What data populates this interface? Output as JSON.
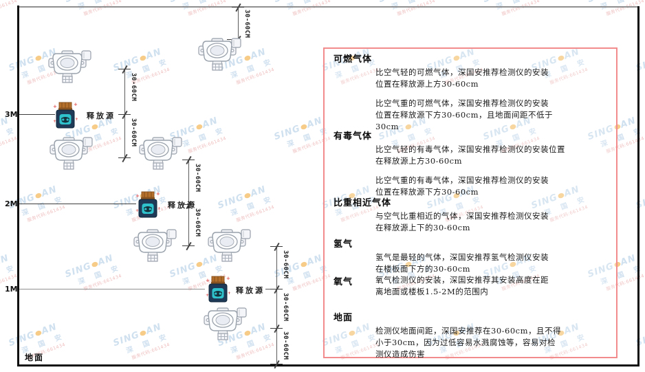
{
  "watermark": {
    "brand_prefix": "SING",
    "brand_suffix": "AN",
    "cjk": "深 国 安",
    "code": "服务代码:661434",
    "brand_color": "#a9c7e3",
    "dot_color": "#f0a428",
    "code_color": "#e28989"
  },
  "diagram": {
    "height_labels": {
      "m3": "3M",
      "m2": "2M",
      "m1": "1M"
    },
    "ground_label": "地面",
    "release_source_label": "释放源",
    "dim_label": "30-60CM"
  },
  "panel": {
    "border_color": "#f28b8b",
    "flammable": {
      "heading": "可燃气体",
      "l1": "比空气轻的可燃气体，深国安推荐检测仪的安装",
      "l2": "位置在释放源上方30-60cm",
      "l3": "比空气重的可燃气体，深国安推荐检测仪的安装",
      "l4": "位置在释放源下方30-60cm，且地面间距不低于",
      "l5": "30cm"
    },
    "toxic": {
      "heading": "有毒气体",
      "l1": "比空气轻的有毒气体，深国安推荐检测仪的安装位置",
      "l2": "在释放源上方30-60cm",
      "l3": "比空气重的有毒气体，深国安推荐检测仪的安装",
      "l4": "位置在释放源下方30-60cm"
    },
    "similar": {
      "heading": "比重相近气体",
      "l1": "与空气比重相近的气体，深国安推荐检测仪安装",
      "l2": "在释放源上下的30-60cm"
    },
    "hydrogen": {
      "heading": "氢气",
      "l1": "氢气是最轻的气体，深国安推荐氢气检测仪安装",
      "l2": "在楼板面下方的30-60cm"
    },
    "oxygen": {
      "heading": "氧气",
      "l1": "氧气检测仪的安装，深国安推荐其安装高度在距",
      "l2": "离地面或楼板1.5-2M的范围内"
    },
    "ground": {
      "heading": "地面",
      "l1": "检测仪地面间距，深国安推荐在30-60cm，且不得",
      "l2": "小于30cm，因为过低容易水溅腐蚀等，容易对检",
      "l3": "测仪造成伤害"
    }
  }
}
